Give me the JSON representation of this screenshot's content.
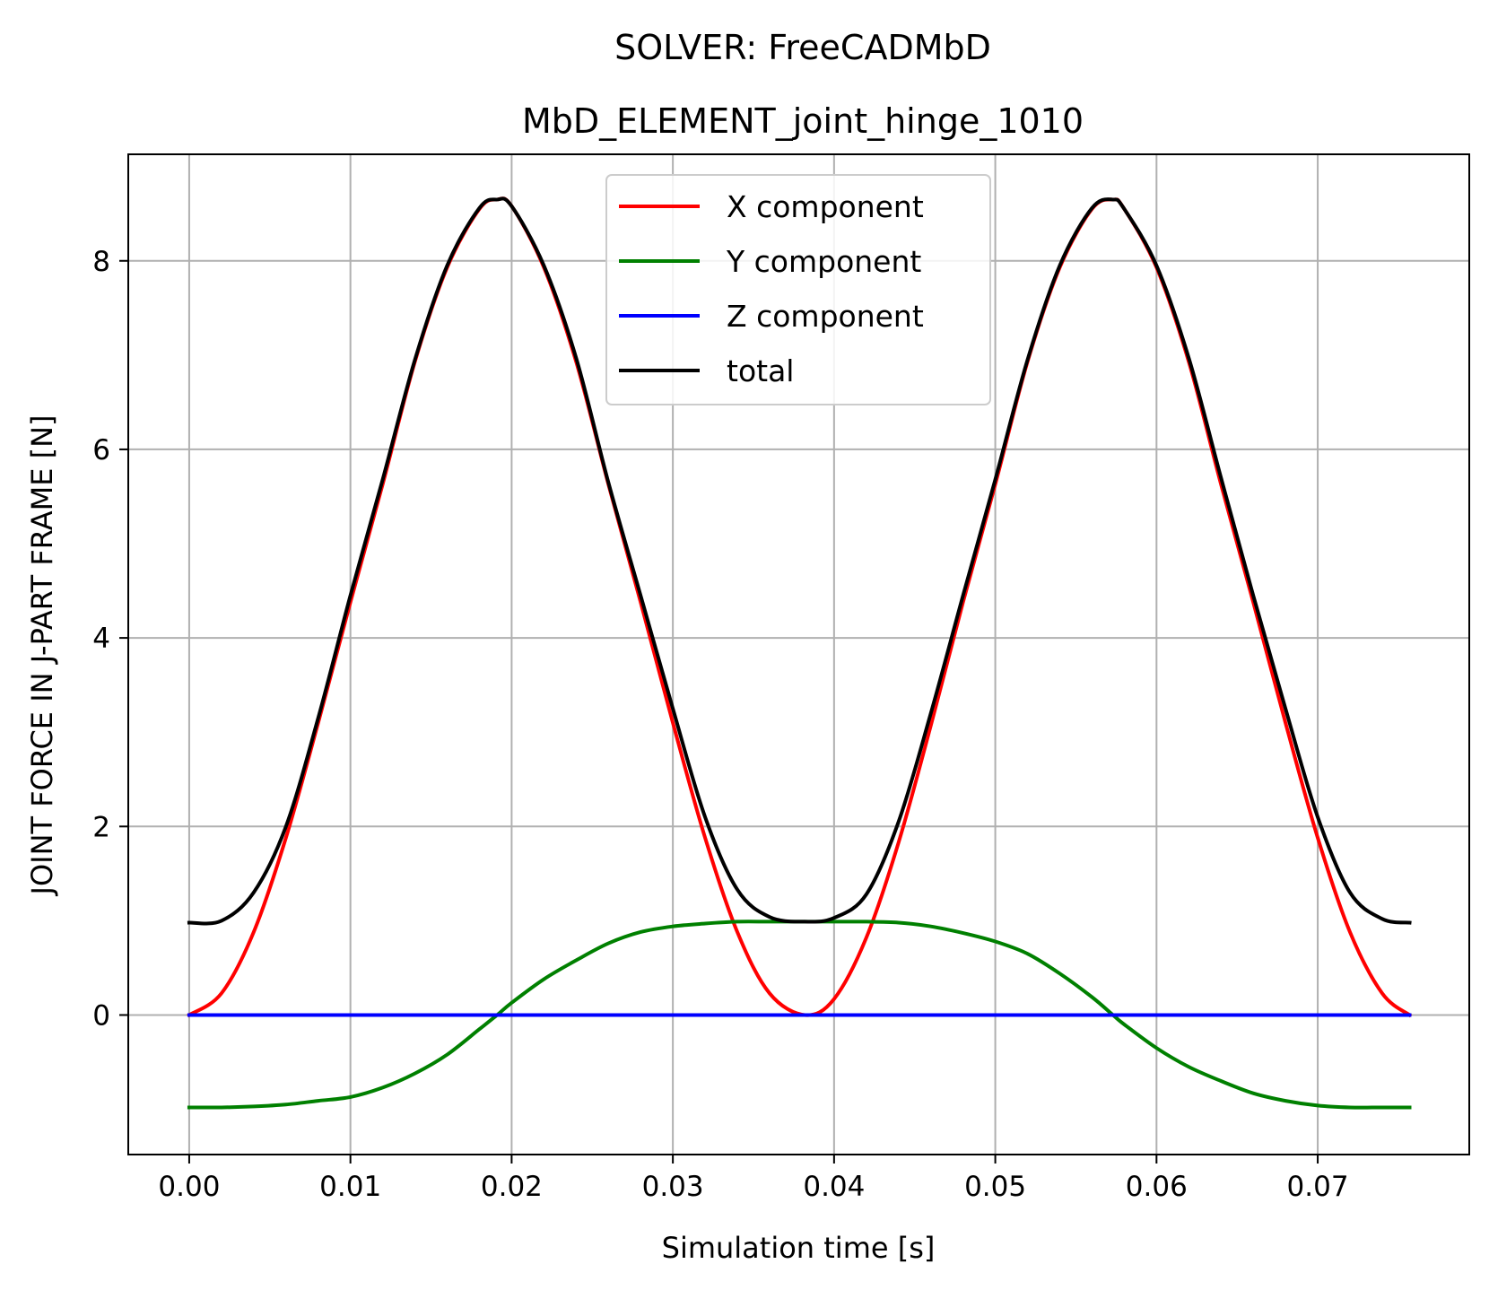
{
  "chart_data": {
    "type": "line",
    "suptitle": "SOLVER: FreeCADMbD",
    "title": "MbD_ELEMENT_joint_hinge_1010",
    "xlabel": "Simulation time [s]",
    "ylabel": "JOINT FORCE IN J-PART FRAME [N]",
    "xlim": [
      -0.00378,
      0.0794
    ],
    "ylim": [
      -1.48,
      9.13
    ],
    "grid": true,
    "legend_position": "upper-center",
    "xticks": [
      0.0,
      0.01,
      0.02,
      0.03,
      0.04,
      0.05,
      0.06,
      0.07
    ],
    "xtick_labels": [
      "0.00",
      "0.01",
      "0.02",
      "0.03",
      "0.04",
      "0.05",
      "0.06",
      "0.07"
    ],
    "yticks": [
      0,
      2,
      4,
      6,
      8
    ],
    "ytick_labels": [
      "0",
      "2",
      "4",
      "6",
      "8"
    ],
    "x": [
      0.0,
      0.002,
      0.004,
      0.006,
      0.008,
      0.01,
      0.012,
      0.014,
      0.016,
      0.018,
      0.0191,
      0.02,
      0.022,
      0.024,
      0.026,
      0.028,
      0.03,
      0.032,
      0.034,
      0.036,
      0.0382,
      0.04,
      0.042,
      0.044,
      0.046,
      0.048,
      0.05,
      0.052,
      0.054,
      0.056,
      0.0573,
      0.058,
      0.06,
      0.062,
      0.064,
      0.066,
      0.068,
      0.07,
      0.072,
      0.074,
      0.0757
    ],
    "series": [
      {
        "name": "X component",
        "color": "#ff0000",
        "values": [
          0.0,
          0.23,
          0.88,
          1.88,
          3.1,
          4.38,
          5.63,
          6.93,
          7.93,
          8.55,
          8.65,
          8.58,
          7.93,
          6.93,
          5.63,
          4.38,
          3.1,
          1.88,
          0.88,
          0.23,
          0.0,
          0.17,
          0.82,
          1.83,
          3.07,
          4.38,
          5.63,
          6.93,
          7.93,
          8.55,
          8.65,
          8.55,
          7.93,
          6.93,
          5.63,
          4.38,
          3.1,
          1.88,
          0.88,
          0.23,
          0.0
        ]
      },
      {
        "name": "Y component",
        "color": "#008000",
        "values": [
          -0.98,
          -0.98,
          -0.97,
          -0.95,
          -0.91,
          -0.87,
          -0.77,
          -0.62,
          -0.42,
          -0.15,
          0.0,
          0.13,
          0.38,
          0.58,
          0.76,
          0.88,
          0.94,
          0.97,
          0.99,
          0.99,
          0.99,
          0.99,
          0.99,
          0.98,
          0.94,
          0.87,
          0.78,
          0.65,
          0.44,
          0.19,
          0.0,
          -0.1,
          -0.35,
          -0.55,
          -0.7,
          -0.83,
          -0.91,
          -0.96,
          -0.98,
          -0.98,
          -0.98
        ]
      },
      {
        "name": "Z component",
        "color": "#0000ff",
        "values": [
          0.0,
          0.0,
          0.0,
          0.0,
          0.0,
          0.0,
          0.0,
          0.0,
          0.0,
          0.0,
          0.0,
          0.0,
          0.0,
          0.0,
          0.0,
          0.0,
          0.0,
          0.0,
          0.0,
          0.0,
          0.0,
          0.0,
          0.0,
          0.0,
          0.0,
          0.0,
          0.0,
          0.0,
          0.0,
          0.0,
          0.0,
          0.0,
          0.0,
          0.0,
          0.0,
          0.0,
          0.0,
          0.0,
          0.0,
          0.0,
          0.0
        ]
      },
      {
        "name": "total",
        "color": "#000000",
        "values": [
          0.98,
          1.0,
          1.3,
          2.0,
          3.15,
          4.45,
          5.68,
          6.95,
          7.95,
          8.56,
          8.65,
          8.58,
          7.95,
          6.97,
          5.65,
          4.45,
          3.25,
          2.1,
          1.33,
          1.04,
          0.99,
          1.03,
          1.28,
          2.05,
          3.2,
          4.45,
          5.68,
          6.95,
          7.95,
          8.56,
          8.65,
          8.55,
          7.95,
          6.97,
          5.7,
          4.45,
          3.25,
          2.1,
          1.3,
          1.02,
          0.98
        ]
      }
    ]
  }
}
